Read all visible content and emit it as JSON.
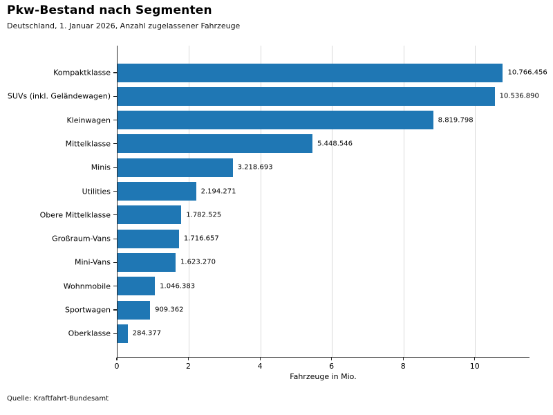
{
  "chart_data": {
    "type": "bar",
    "orientation": "horizontal",
    "title": "Pkw-Bestand nach Segmenten",
    "subtitle": "Deutschland, 1. Januar 2026, Anzahl zugelassener Fahrzeuge",
    "xlabel": "Fahrzeuge in Mio.",
    "source": "Quelle: Kraftfahrt-Bundesamt",
    "categories": [
      "Kompaktklasse",
      "SUVs (inkl. Geländewagen)",
      "Kleinwagen",
      "Mittelklasse",
      "Minis",
      "Utilities",
      "Obere Mittelklasse",
      "Großraum-Vans",
      "Mini-Vans",
      "Wohnmobile",
      "Sportwagen",
      "Oberklasse"
    ],
    "values": [
      10766456,
      10536890,
      8819798,
      5448546,
      3218693,
      2194271,
      1782525,
      1716657,
      1623270,
      1046383,
      909362,
      284377
    ],
    "value_labels": [
      "10.766.456",
      "10.536.890",
      "8.819.798",
      "5.448.546",
      "3.218.693",
      "2.194.271",
      "1.782.525",
      "1.716.657",
      "1.623.270",
      "1.046.383",
      "909.362",
      "284.377"
    ],
    "x_unit": "Mio.",
    "xlim": [
      0,
      11.53
    ],
    "xticks": [
      0,
      2,
      4,
      6,
      8,
      10
    ],
    "grid": "vertical",
    "legend": "none",
    "bar_color": "#1f77b4",
    "grid_color": "#d9d9d9",
    "axis_color": "#262626",
    "text_color": "#000000"
  }
}
